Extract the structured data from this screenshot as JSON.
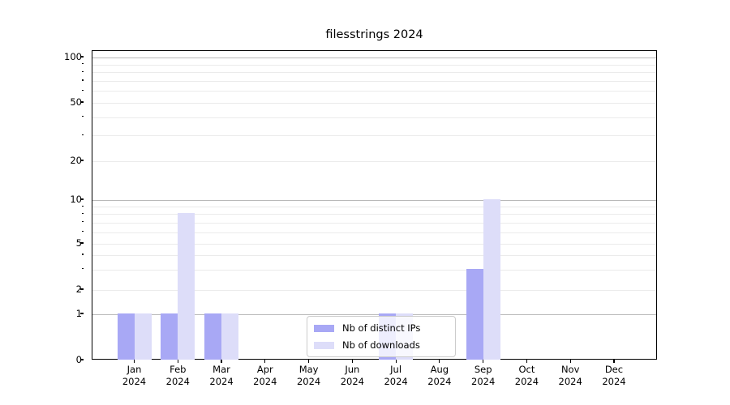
{
  "chart_data": {
    "type": "bar",
    "title": "filesstrings 2024",
    "categories": [
      {
        "month": "Jan",
        "year": "2024"
      },
      {
        "month": "Feb",
        "year": "2024"
      },
      {
        "month": "Mar",
        "year": "2024"
      },
      {
        "month": "Apr",
        "year": "2024"
      },
      {
        "month": "May",
        "year": "2024"
      },
      {
        "month": "Jun",
        "year": "2024"
      },
      {
        "month": "Jul",
        "year": "2024"
      },
      {
        "month": "Aug",
        "year": "2024"
      },
      {
        "month": "Sep",
        "year": "2024"
      },
      {
        "month": "Oct",
        "year": "2024"
      },
      {
        "month": "Nov",
        "year": "2024"
      },
      {
        "month": "Dec",
        "year": "2024"
      }
    ],
    "series": [
      {
        "name": "Nb of distinct IPs",
        "color": "#a8a8f5",
        "values": [
          1,
          1,
          1,
          0,
          0,
          0,
          1,
          0,
          3,
          0,
          0,
          0
        ]
      },
      {
        "name": "Nb of downloads",
        "color": "#ddddf9",
        "values": [
          1,
          8,
          1,
          0,
          0,
          0,
          1,
          0,
          10,
          0,
          0,
          0
        ]
      }
    ],
    "yscale": "symlog",
    "y_ticks": [
      0,
      1,
      2,
      5,
      10,
      20,
      50,
      100
    ],
    "ylim": [
      0,
      120
    ],
    "grid": true,
    "legend_position": "lower center"
  },
  "colors": {
    "major_grid": "#b9b9b9",
    "minor_grid": "#ebebeb",
    "axis": "#000000",
    "background": "#ffffff"
  }
}
